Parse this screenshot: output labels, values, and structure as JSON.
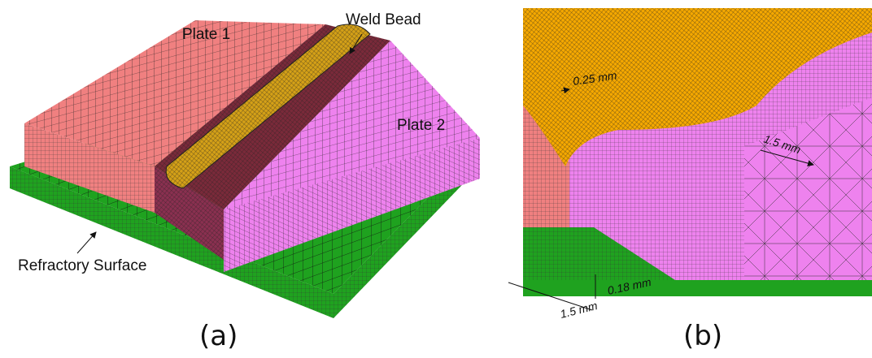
{
  "panel_a": {
    "labels": {
      "plate_1": "Plate 1",
      "weld_bead": "Weld Bead",
      "plate_2": "Plate 2",
      "refractory_surface": "Refractory Surface"
    },
    "caption": "(a)"
  },
  "panel_b": {
    "dimensions": {
      "weld": "0.25 mm",
      "plate": "1.5 mm",
      "base_fine": "0.18 mm",
      "base_coarse": "1.5 mm"
    },
    "caption": "(b)"
  }
}
